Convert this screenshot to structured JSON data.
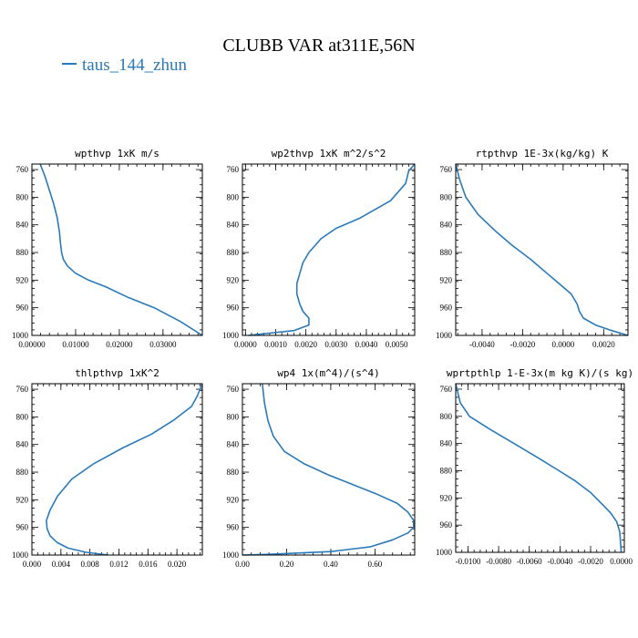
{
  "title": "CLUBB VAR at311E,56N",
  "legend": {
    "label": "taus_144_zhun",
    "color": "#2a7ab9"
  },
  "chart_data": [
    {
      "type": "line",
      "title": "wpthvp  1xK m/s",
      "xlim": [
        0,
        0.039
      ],
      "ylim": [
        1000,
        752
      ],
      "xticks": [
        0.0,
        0.01,
        0.02,
        0.03
      ],
      "xticklabels": [
        "0.00000",
        "0.01000",
        "0.02000",
        "0.03000"
      ],
      "yticks": [
        760,
        800,
        840,
        880,
        920,
        960,
        1000
      ],
      "series": [
        {
          "x": [
            0.0019,
            0.003,
            0.004,
            0.005,
            0.0058,
            0.0063,
            0.0065,
            0.0068,
            0.0072,
            0.0082,
            0.01,
            0.013,
            0.017,
            0.022,
            0.028,
            0.034,
            0.039
          ],
          "y": [
            752,
            770,
            790,
            810,
            830,
            850,
            865,
            880,
            890,
            900,
            910,
            920,
            930,
            945,
            960,
            980,
            1000
          ]
        }
      ]
    },
    {
      "type": "line",
      "title": "wp2thvp  1xK m^2/s^2",
      "xlim": [
        -0.0001,
        0.0056
      ],
      "ylim": [
        1000,
        752
      ],
      "xticks": [
        0.0,
        0.001,
        0.002,
        0.003,
        0.004,
        0.005
      ],
      "xticklabels": [
        "0.0000",
        "0.0010",
        "0.0020",
        "0.0030",
        "0.0040",
        "0.0050"
      ],
      "yticks": [
        760,
        800,
        840,
        880,
        920,
        960,
        1000
      ],
      "series": [
        {
          "x": [
            0.0056,
            0.0054,
            0.0053,
            0.0048,
            0.0038,
            0.003,
            0.0025,
            0.0023,
            0.0021,
            0.0019,
            0.0018,
            0.0017,
            0.0017,
            0.0018,
            0.0019,
            0.002,
            0.0021,
            0.0021,
            0.0016,
            0.0001
          ],
          "y": [
            752,
            762,
            780,
            805,
            830,
            845,
            860,
            870,
            880,
            895,
            910,
            925,
            940,
            955,
            965,
            970,
            975,
            985,
            993,
            1000
          ]
        }
      ]
    },
    {
      "type": "line",
      "title": "rtpthvp  1E-3x(kg/kg) K",
      "xlim": [
        -0.0053,
        0.0032
      ],
      "ylim": [
        1000,
        752
      ],
      "xticks": [
        -0.004,
        -0.002,
        0.0,
        0.002
      ],
      "xticklabels": [
        "-0.0040",
        "-0.0020",
        "0.0000",
        "0.0020"
      ],
      "yticks": [
        760,
        800,
        840,
        880,
        920,
        960,
        1000
      ],
      "series": [
        {
          "x": [
            -0.0053,
            -0.0051,
            -0.0048,
            -0.0042,
            -0.0033,
            -0.0025,
            -0.0016,
            -0.0008,
            -0.0002,
            0.0004,
            0.0007,
            0.0008,
            0.001,
            0.0016,
            0.0024,
            0.0032
          ],
          "y": [
            752,
            775,
            800,
            825,
            850,
            870,
            890,
            910,
            925,
            940,
            955,
            965,
            975,
            985,
            993,
            1000
          ]
        }
      ]
    },
    {
      "type": "line",
      "title": "thlpthvp  1xK^2",
      "xlim": [
        0,
        0.0235
      ],
      "ylim": [
        1000,
        752
      ],
      "xticks": [
        0.0,
        0.004,
        0.008,
        0.012,
        0.016,
        0.02
      ],
      "xticklabels": [
        "0.000",
        "0.004",
        "0.008",
        "0.012",
        "0.016",
        "0.020"
      ],
      "yticks": [
        760,
        800,
        840,
        880,
        920,
        960,
        1000
      ],
      "series": [
        {
          "x": [
            0.0235,
            0.0228,
            0.022,
            0.0195,
            0.0165,
            0.0125,
            0.0085,
            0.0055,
            0.0035,
            0.0025,
            0.002,
            0.0021,
            0.0025,
            0.0035,
            0.005,
            0.0075,
            0.0105
          ],
          "y": [
            752,
            770,
            785,
            805,
            825,
            845,
            868,
            890,
            915,
            935,
            950,
            962,
            972,
            982,
            990,
            996,
            1000
          ]
        }
      ]
    },
    {
      "type": "line",
      "title": "wp4  1x(m^4)/(s^4)",
      "xlim": [
        0,
        0.78
      ],
      "ylim": [
        1000,
        752
      ],
      "xticks": [
        0.0,
        0.2,
        0.4,
        0.6
      ],
      "xticklabels": [
        "0.00",
        "0.20",
        "0.40",
        "0.60"
      ],
      "yticks": [
        760,
        800,
        840,
        880,
        920,
        960,
        1000
      ],
      "series": [
        {
          "x": [
            0.09,
            0.1,
            0.115,
            0.14,
            0.19,
            0.28,
            0.39,
            0.5,
            0.61,
            0.7,
            0.75,
            0.775,
            0.775,
            0.75,
            0.68,
            0.58,
            0.4,
            0.12,
            0.0
          ],
          "y": [
            752,
            780,
            805,
            828,
            850,
            868,
            884,
            898,
            912,
            925,
            938,
            950,
            960,
            968,
            978,
            988,
            995,
            999,
            1000
          ]
        }
      ]
    },
    {
      "type": "line",
      "title": "wprtpthlp  1-E-3x(m kg K)/(s kg)",
      "xlim": [
        -0.0108,
        0.0002
      ],
      "ylim": [
        1000,
        752
      ],
      "xticks": [
        -0.01,
        -0.008,
        -0.006,
        -0.004,
        -0.002,
        0.0
      ],
      "xticklabels": [
        "-0.0100",
        "-0.0080",
        "-0.0060",
        "-0.0040",
        "-0.0020",
        "0.0000"
      ],
      "yticks": [
        760,
        800,
        840,
        880,
        920,
        960,
        1000
      ],
      "series": [
        {
          "x": [
            -0.0108,
            -0.0105,
            -0.0099,
            -0.0085,
            -0.007,
            -0.0055,
            -0.0042,
            -0.003,
            -0.002,
            -0.0013,
            -0.0007,
            -0.0003,
            -0.0001,
            0.0
          ],
          "y": [
            752,
            780,
            800,
            820,
            840,
            860,
            878,
            895,
            912,
            928,
            942,
            955,
            970,
            1000
          ]
        }
      ]
    }
  ]
}
